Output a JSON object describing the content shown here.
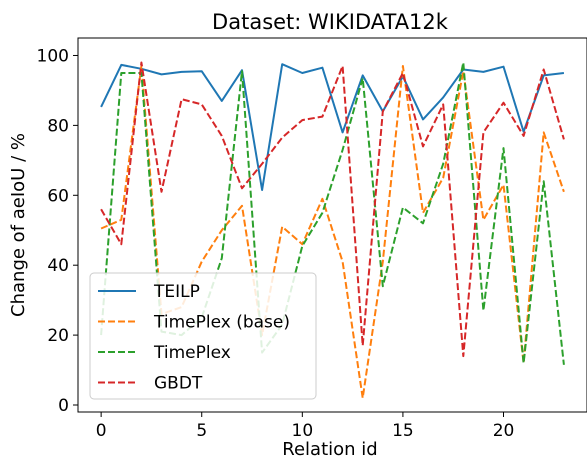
{
  "chart_data": {
    "type": "line",
    "title": "Dataset: WIKIDATA12k",
    "xlabel": "Relation id",
    "ylabel": "Change of aeIoU / %",
    "xlim": [
      -1.15,
      24.15
    ],
    "ylim": [
      -2,
      105
    ],
    "xticks": [
      0,
      5,
      10,
      15,
      20
    ],
    "yticks": [
      0,
      20,
      40,
      60,
      80,
      100
    ],
    "grid": false,
    "legend_position": "lower-left",
    "x": [
      0,
      1,
      2,
      3,
      4,
      5,
      6,
      7,
      8,
      9,
      10,
      11,
      12,
      13,
      14,
      15,
      16,
      17,
      18,
      19,
      20,
      21,
      22,
      23
    ],
    "series": [
      {
        "name": "TEILP",
        "color": "#1f77b4",
        "dash": "solid",
        "values": [
          85.3,
          97.3,
          96.2,
          94.6,
          95.3,
          95.5,
          87.0,
          95.8,
          61.5,
          97.5,
          95.0,
          96.5,
          78.0,
          94.3,
          84.0,
          94.0,
          81.7,
          88.0,
          96.0,
          95.3,
          96.8,
          78.2,
          94.3,
          95.0
        ]
      },
      {
        "name": "TimePlex (base)",
        "color": "#ff7f0e",
        "dash": "dashed",
        "values": [
          50.5,
          53.0,
          97.0,
          26.0,
          28.0,
          41.0,
          50.0,
          57.0,
          20.0,
          51.0,
          46.0,
          59.0,
          41.0,
          2.0,
          41.0,
          97.0,
          55.0,
          65.0,
          95.5,
          53.0,
          63.0,
          12.0,
          78.0,
          61.0
        ]
      },
      {
        "name": "TimePlex",
        "color": "#2ca02c",
        "dash": "dashed",
        "values": [
          20.0,
          95.0,
          95.0,
          21.0,
          20.0,
          25.0,
          42.0,
          95.5,
          15.0,
          23.0,
          45.5,
          55.0,
          73.0,
          93.5,
          34.0,
          56.5,
          52.0,
          69.0,
          98.0,
          27.0,
          73.5,
          12.0,
          64.0,
          11.5
        ]
      },
      {
        "name": "GBDT",
        "color": "#d62728",
        "dash": "dashed",
        "values": [
          56.0,
          46.0,
          98.0,
          61.0,
          87.5,
          86.0,
          77.0,
          62.0,
          69.0,
          76.5,
          81.5,
          82.5,
          97.0,
          17.0,
          84.0,
          95.0,
          74.0,
          86.0,
          14.0,
          78.0,
          86.5,
          77.0,
          96.0,
          76.0
        ]
      }
    ]
  }
}
